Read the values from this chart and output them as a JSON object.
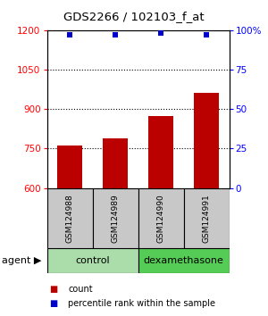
{
  "title": "GDS2266 / 102103_f_at",
  "samples": [
    "GSM124988",
    "GSM124989",
    "GSM124990",
    "GSM124991"
  ],
  "counts": [
    760,
    790,
    875,
    960
  ],
  "percentiles": [
    97,
    97,
    98,
    97
  ],
  "ylim_left": [
    600,
    1200
  ],
  "ylim_right": [
    0,
    100
  ],
  "yticks_left": [
    600,
    750,
    900,
    1050,
    1200
  ],
  "yticks_right": [
    0,
    25,
    50,
    75,
    100
  ],
  "bar_color": "#bb0000",
  "dot_color": "#0000cc",
  "bar_width": 0.55,
  "groups": [
    {
      "label": "control",
      "samples": [
        0,
        1
      ],
      "color": "#aaddaa"
    },
    {
      "label": "dexamethasone",
      "samples": [
        2,
        3
      ],
      "color": "#55cc55"
    }
  ],
  "agent_label": "agent",
  "legend_count": "count",
  "legend_pct": "percentile rank within the sample",
  "bg_color": "#c8c8c8",
  "plot_bg": "#ffffff"
}
